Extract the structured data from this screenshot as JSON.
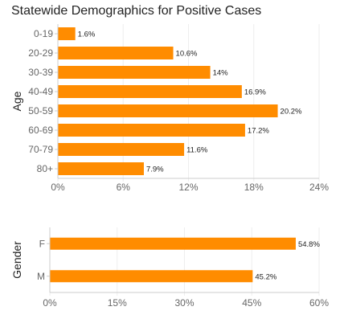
{
  "title": "Statewide Demographics for Positive Cases",
  "colors": {
    "bar": "#FF8C00",
    "grid": "#eeeeee",
    "axis": "#cccccc",
    "text": "#666666"
  },
  "chart_data": [
    {
      "type": "bar",
      "orientation": "horizontal",
      "ylabel": "Age",
      "categories": [
        "0-19",
        "20-29",
        "30-39",
        "40-49",
        "50-59",
        "60-69",
        "70-79",
        "80+"
      ],
      "values": [
        1.6,
        10.6,
        14,
        16.9,
        20.2,
        17.2,
        11.6,
        7.9
      ],
      "data_labels": [
        "1.6%",
        "10.6%",
        "14%",
        "16.9%",
        "20.2%",
        "17.2%",
        "11.6%",
        "7.9%"
      ],
      "xlim": [
        0,
        24
      ],
      "xticks": [
        0,
        6,
        12,
        18,
        24
      ],
      "xtick_labels": [
        "0%",
        "6%",
        "12%",
        "18%",
        "24%"
      ],
      "grid": true
    },
    {
      "type": "bar",
      "orientation": "horizontal",
      "ylabel": "Gender",
      "categories": [
        "F",
        "M"
      ],
      "values": [
        54.8,
        45.2
      ],
      "data_labels": [
        "54.8%",
        "45.2%"
      ],
      "xlim": [
        0,
        60
      ],
      "xticks": [
        0,
        15,
        30,
        45,
        60
      ],
      "xtick_labels": [
        "0%",
        "15%",
        "30%",
        "45%",
        "60%"
      ],
      "grid": true
    }
  ]
}
